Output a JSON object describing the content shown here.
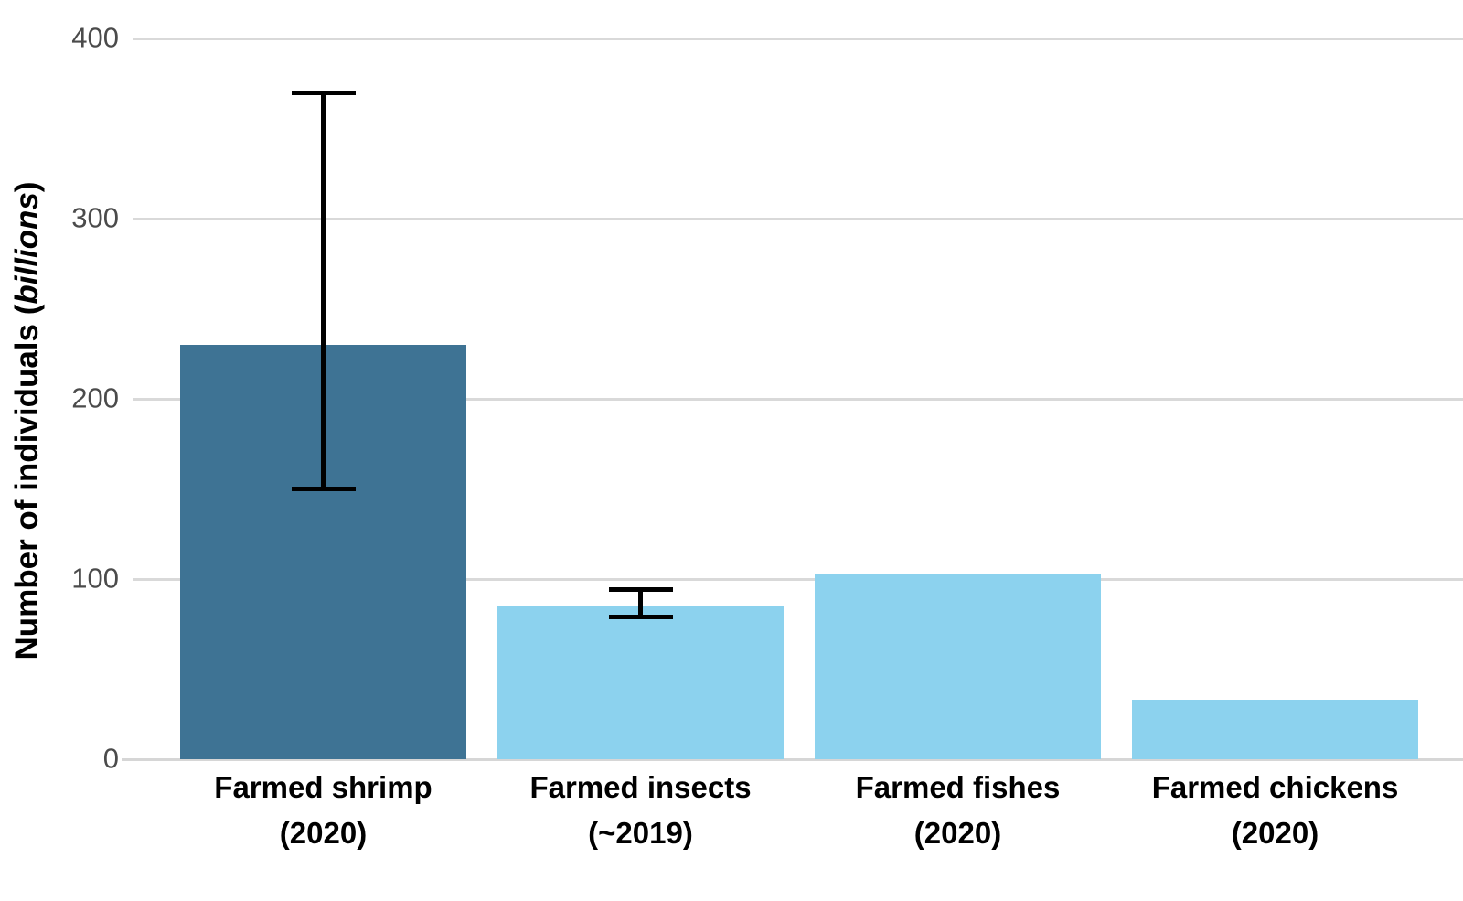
{
  "chart_data": {
    "type": "bar",
    "title": "",
    "ylabel": "Number of individuals (billions)",
    "ylabel_parts": {
      "prefix": "Number of individuals (",
      "italic": "billions",
      "suffix": ")"
    },
    "xlabel": "",
    "yticks": [
      0,
      100,
      200,
      300,
      400
    ],
    "ylim": [
      0,
      415
    ],
    "grid": "horizontal",
    "legend": "none",
    "categories": [
      "Farmed shrimp (2020)",
      "Farmed insects (~2019)",
      "Farmed fishes (2020)",
      "Farmed chickens (2020)"
    ],
    "category_lines": [
      [
        "Farmed shrimp",
        "(2020)"
      ],
      [
        "Farmed insects",
        "(~2019)"
      ],
      [
        "Farmed fishes",
        "(2020)"
      ],
      [
        "Farmed chickens",
        "(2020)"
      ]
    ],
    "series": [
      {
        "name": "Number of individuals (billions)",
        "values": [
          230,
          85,
          103,
          33
        ]
      }
    ],
    "error_bars": [
      {
        "low": 150,
        "high": 370
      },
      {
        "low": 79,
        "high": 94
      },
      null,
      null
    ],
    "bar_colors": [
      "#3e7394",
      "#8cd2ee",
      "#8cd2ee",
      "#8cd2ee"
    ],
    "colors": {
      "background": "#ffffff",
      "gridline": "#d9d9d9",
      "axis_line": "#d6d6d6",
      "tick_label": "#4b4b4b",
      "bar_dark": "#3e7394",
      "bar_light": "#8cd2ee",
      "error_bar": "#000000",
      "category_label": "#000000"
    }
  }
}
